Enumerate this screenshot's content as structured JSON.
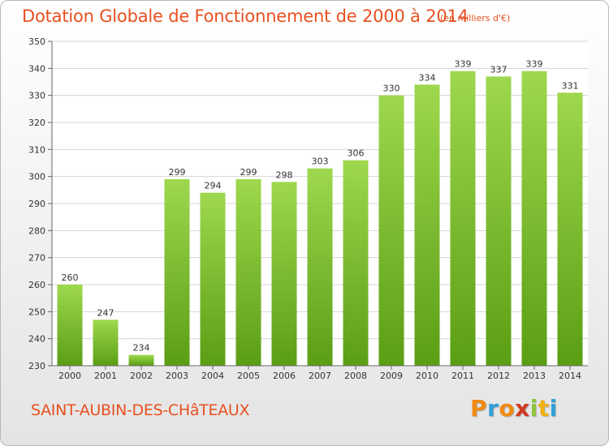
{
  "chart_data": {
    "type": "bar",
    "title": "Dotation Globale de Fonctionnement de 2000 à 2014",
    "subtitle": "(en milliers d'€)",
    "categories": [
      "2000",
      "2001",
      "2002",
      "2003",
      "2004",
      "2005",
      "2006",
      "2007",
      "2008",
      "2009",
      "2010",
      "2011",
      "2012",
      "2013",
      "2014"
    ],
    "values": [
      260,
      247,
      234,
      299,
      294,
      299,
      298,
      303,
      306,
      330,
      334,
      339,
      337,
      339,
      331
    ],
    "ylim": [
      230,
      350
    ],
    "yticks": [
      230,
      240,
      250,
      260,
      270,
      280,
      290,
      300,
      310,
      320,
      330,
      340,
      350
    ],
    "grid": true,
    "bar_color_top": "#9ed84e",
    "bar_color_bottom": "#5a9e14"
  },
  "footer": {
    "location": "SAINT-AUBIN-DES-CHâTEAUX"
  },
  "logo": {
    "text": "Proxiti",
    "colors": [
      "#f08a12",
      "#2f9fd8",
      "#f08a12",
      "#d03a20",
      "#8cc43c",
      "#f0b010",
      "#2f9fd8"
    ]
  }
}
